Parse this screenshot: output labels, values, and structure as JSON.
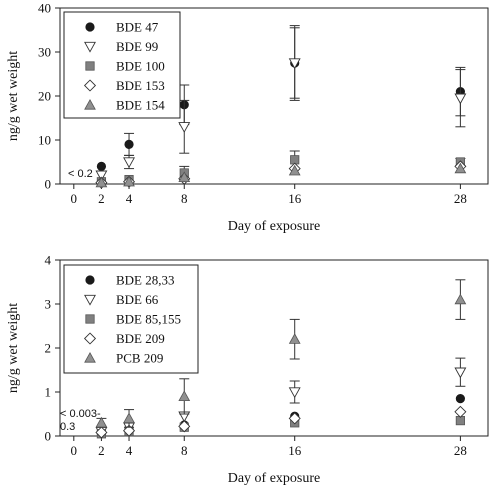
{
  "chart_data": [
    {
      "type": "scatter",
      "title": "",
      "xlabel": "Day of exposure",
      "ylabel": "ng/g wet weight",
      "xlim": [
        -1,
        30
      ],
      "ylim": [
        0,
        40
      ],
      "x_ticks": [
        0,
        2,
        4,
        8,
        16,
        28
      ],
      "y_ticks": [
        0,
        10,
        20,
        30,
        40
      ],
      "legend_position": "top-left",
      "annotation": "< 0.2",
      "series": [
        {
          "name": "BDE 47",
          "marker": "circle",
          "color": "#1a1a1a",
          "points": [
            {
              "x": 2,
              "y": 4.0
            },
            {
              "x": 4,
              "y": 9.0,
              "err": 2.5
            },
            {
              "x": 8,
              "y": 18.0,
              "err": 4.5
            },
            {
              "x": 16,
              "y": 27.5,
              "err": 8.5
            },
            {
              "x": 28,
              "y": 21.0,
              "err": 5.5
            }
          ]
        },
        {
          "name": "BDE 99",
          "marker": "triangle-down",
          "color": "#ffffff",
          "points": [
            {
              "x": 2,
              "y": 2.0
            },
            {
              "x": 4,
              "y": 5.0,
              "err": 1.5
            },
            {
              "x": 8,
              "y": 13.0,
              "err": 6.0
            },
            {
              "x": 16,
              "y": 27.5,
              "err": 8.0
            },
            {
              "x": 28,
              "y": 19.5,
              "err": 6.5
            }
          ]
        },
        {
          "name": "BDE 100",
          "marker": "square",
          "color": "#808080",
          "points": [
            {
              "x": 2,
              "y": 0.5
            },
            {
              "x": 4,
              "y": 1.0
            },
            {
              "x": 8,
              "y": 2.5,
              "err": 1.5
            },
            {
              "x": 16,
              "y": 5.5,
              "err": 2.0
            },
            {
              "x": 28,
              "y": 5.0,
              "err": 0.8
            }
          ]
        },
        {
          "name": "BDE 153",
          "marker": "diamond",
          "color": "#ffffff",
          "points": [
            {
              "x": 2,
              "y": 0.3
            },
            {
              "x": 4,
              "y": 0.5
            },
            {
              "x": 8,
              "y": 1.2
            },
            {
              "x": 16,
              "y": 3.5
            },
            {
              "x": 28,
              "y": 4.0
            }
          ]
        },
        {
          "name": "BDE 154",
          "marker": "triangle-up",
          "color": "#909090",
          "points": [
            {
              "x": 2,
              "y": 0.3
            },
            {
              "x": 4,
              "y": 0.5
            },
            {
              "x": 8,
              "y": 1.5
            },
            {
              "x": 16,
              "y": 3.0
            },
            {
              "x": 28,
              "y": 3.5
            }
          ]
        }
      ]
    },
    {
      "type": "scatter",
      "title": "",
      "xlabel": "Day of exposure",
      "ylabel": "ng/g wet weight",
      "xlim": [
        -1,
        30
      ],
      "ylim": [
        0,
        4
      ],
      "x_ticks": [
        0,
        2,
        4,
        8,
        16,
        28
      ],
      "y_ticks": [
        0,
        1,
        2,
        3,
        4
      ],
      "legend_position": "top-left",
      "annotation": "< 0.003-\n0.3",
      "series": [
        {
          "name": "BDE 28,33",
          "marker": "circle",
          "color": "#1a1a1a",
          "points": [
            {
              "x": 2,
              "y": 0.1
            },
            {
              "x": 4,
              "y": 0.15
            },
            {
              "x": 8,
              "y": 0.25
            },
            {
              "x": 16,
              "y": 0.45
            },
            {
              "x": 28,
              "y": 0.85
            }
          ]
        },
        {
          "name": "BDE 66",
          "marker": "triangle-down",
          "color": "#ffffff",
          "points": [
            {
              "x": 2,
              "y": 0.1
            },
            {
              "x": 4,
              "y": 0.2
            },
            {
              "x": 8,
              "y": 0.45
            },
            {
              "x": 16,
              "y": 1.0,
              "err": 0.25
            },
            {
              "x": 28,
              "y": 1.45,
              "err": 0.32
            }
          ]
        },
        {
          "name": "BDE 85,155",
          "marker": "square",
          "color": "#808080",
          "points": [
            {
              "x": 2,
              "y": 0.05
            },
            {
              "x": 4,
              "y": 0.1
            },
            {
              "x": 8,
              "y": 0.2
            },
            {
              "x": 16,
              "y": 0.3
            },
            {
              "x": 28,
              "y": 0.35
            }
          ]
        },
        {
          "name": "BDE 209",
          "marker": "diamond",
          "color": "#ffffff",
          "points": [
            {
              "x": 2,
              "y": 0.08
            },
            {
              "x": 4,
              "y": 0.12
            },
            {
              "x": 8,
              "y": 0.22
            },
            {
              "x": 16,
              "y": 0.4
            },
            {
              "x": 28,
              "y": 0.55
            }
          ]
        },
        {
          "name": "PCB 209",
          "marker": "triangle-up",
          "color": "#909090",
          "points": [
            {
              "x": 2,
              "y": 0.3,
              "err": 0.1
            },
            {
              "x": 4,
              "y": 0.4,
              "err": 0.2
            },
            {
              "x": 8,
              "y": 0.9,
              "err": 0.4
            },
            {
              "x": 16,
              "y": 2.2,
              "err": 0.45
            },
            {
              "x": 28,
              "y": 3.1,
              "err": 0.45
            }
          ]
        }
      ]
    }
  ]
}
